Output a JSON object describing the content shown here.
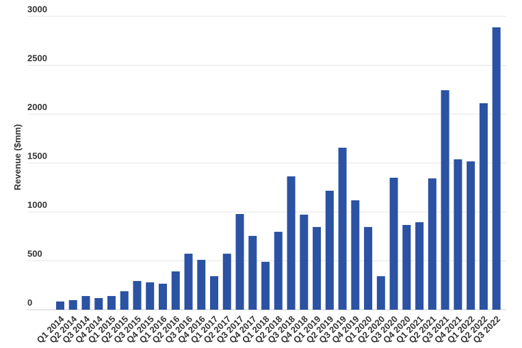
{
  "chart_data": {
    "type": "bar",
    "y_label": "Revenue ($mm)",
    "categories": [
      "Q1 2014",
      "Q2 2014",
      "Q3 2014",
      "Q4 2014",
      "Q1 2015",
      "Q2 2015",
      "Q3 2015",
      "Q4 2015",
      "Q1 2016",
      "Q2 2016",
      "Q3 2016",
      "Q4 2016",
      "Q1 2017",
      "Q2 2017",
      "Q3 2017",
      "Q4 2017",
      "Q1 2018",
      "Q2 2018",
      "Q3 2018",
      "Q4 2018",
      "Q1 2019",
      "Q2 2019",
      "Q3 2019",
      "Q4 2019",
      "Q1 2020",
      "Q2 2020",
      "Q3 2020",
      "Q4 2020",
      "Q1 2021",
      "Q2 2021",
      "Q3 2021",
      "Q4 2021",
      "Q1 2022",
      "Q2 2022",
      "Q3 2022"
    ],
    "values": [
      84,
      98,
      140,
      119,
      140,
      189,
      294,
      280,
      266,
      392,
      573,
      510,
      343,
      573,
      979,
      755,
      490,
      797,
      1364,
      972,
      846,
      1217,
      1657,
      1119,
      846,
      343,
      1350,
      867,
      895,
      1343,
      2245,
      1538,
      1517,
      2112,
      2888
    ],
    "color": "#2b52a3",
    "ylim": [
      0,
      3000
    ],
    "yticks": [
      0,
      500,
      1000,
      1500,
      2000,
      2500,
      3000
    ],
    "grid": true
  }
}
